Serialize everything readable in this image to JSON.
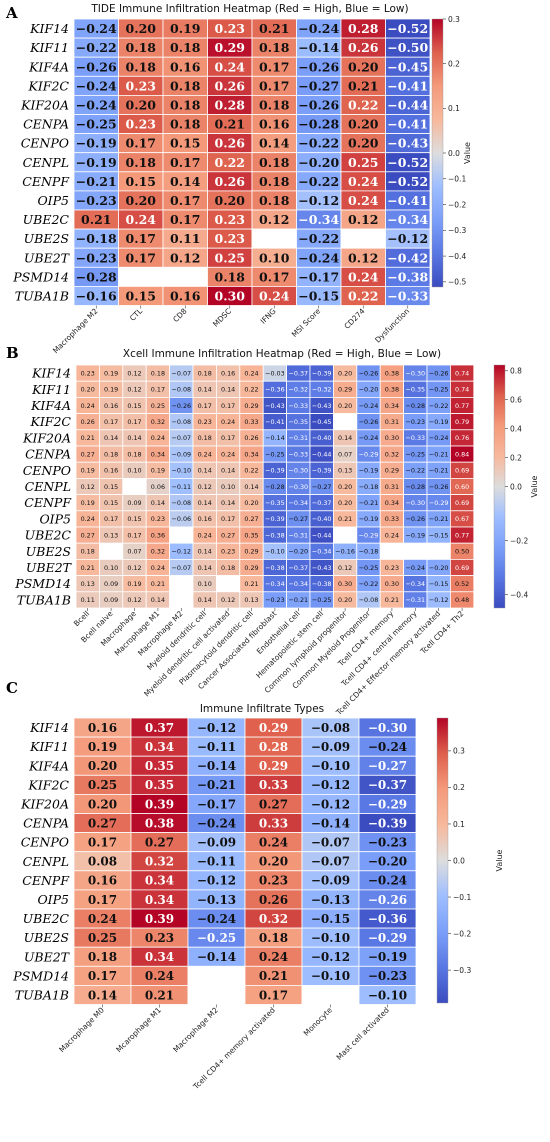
{
  "chart_data": [
    {
      "type": "heatmap",
      "panel_label": "A",
      "title": "TIDE Immune Infiltration Heatmap (Red = High, Blue = Low)",
      "rows": [
        "KIF14",
        "KIF11",
        "KIF4A",
        "KIF2C",
        "KIF20A",
        "CENPA",
        "CENPO",
        "CENPL",
        "CENPF",
        "OIP5",
        "UBE2C",
        "UBE2S",
        "UBE2T",
        "PSMD14",
        "TUBA1B"
      ],
      "columns": [
        "Macrophage M2",
        "CTL",
        "CD8",
        "MDSC",
        "IFNG",
        "MSI Score",
        "CD274",
        "Dysfunction"
      ],
      "values": [
        [
          -0.24,
          0.2,
          0.19,
          0.23,
          0.21,
          -0.24,
          0.28,
          -0.52
        ],
        [
          -0.22,
          0.18,
          0.18,
          0.29,
          0.18,
          -0.14,
          0.26,
          -0.5
        ],
        [
          -0.26,
          0.18,
          0.16,
          0.24,
          0.17,
          -0.26,
          0.2,
          -0.45
        ],
        [
          -0.24,
          0.23,
          0.18,
          0.26,
          0.17,
          -0.27,
          0.21,
          -0.41
        ],
        [
          -0.24,
          0.2,
          0.18,
          0.28,
          0.18,
          -0.26,
          0.22,
          -0.44
        ],
        [
          -0.25,
          0.23,
          0.18,
          0.21,
          0.16,
          -0.28,
          0.2,
          -0.41
        ],
        [
          -0.19,
          0.17,
          0.15,
          0.26,
          0.14,
          -0.22,
          0.2,
          -0.43
        ],
        [
          -0.19,
          0.18,
          0.17,
          0.22,
          0.18,
          -0.2,
          0.25,
          -0.52
        ],
        [
          -0.21,
          0.15,
          0.14,
          0.26,
          0.18,
          -0.22,
          0.24,
          -0.52
        ],
        [
          -0.23,
          0.2,
          0.17,
          0.2,
          0.18,
          -0.12,
          0.24,
          -0.41
        ],
        [
          0.21,
          0.24,
          0.17,
          0.23,
          0.12,
          -0.34,
          0.12,
          -0.34
        ],
        [
          -0.18,
          0.17,
          0.11,
          0.23,
          null,
          -0.22,
          null,
          -0.12
        ],
        [
          -0.23,
          0.17,
          0.12,
          0.25,
          0.1,
          -0.24,
          0.12,
          -0.42
        ],
        [
          -0.28,
          null,
          null,
          0.18,
          0.17,
          -0.17,
          0.24,
          -0.38
        ],
        [
          -0.16,
          0.15,
          0.16,
          0.3,
          0.24,
          -0.15,
          0.22,
          -0.33
        ]
      ],
      "vmin": -0.52,
      "vmax": 0.3,
      "colorbar_ticks": [
        0.3,
        0.2,
        0.1,
        0.0,
        -0.1,
        -0.2,
        -0.3,
        -0.4,
        -0.5
      ],
      "colorbar_tick_labels": [
        "0.3",
        "0.2",
        "0.1",
        "0.0",
        "−0.1",
        "−0.2",
        "−0.3",
        "−0.4",
        "−0.5"
      ],
      "colorbar_label": "Value"
    },
    {
      "type": "heatmap",
      "panel_label": "B",
      "title": "Xcell Immune Infiltration Heatmap (Red = High, Blue = Low)",
      "rows": [
        "KIF14",
        "KIF11",
        "KIF4A",
        "KIF2C",
        "KIF20A",
        "CENPA",
        "CENPO",
        "CENPL",
        "CENPF",
        "OIP5",
        "UBE2C",
        "UBE2S",
        "UBE2T",
        "PSMD14",
        "TUBA1B"
      ],
      "columns": [
        "Bcell",
        "Bcell naive",
        "Macrophage",
        "Macrophage M1",
        "Macrophage M2",
        "Myeloid dendritic cell",
        "Myeloid dendritic cell activated",
        "Plasmacytoid dendritic cell",
        "Cancer Associated fibroblast",
        "Endothelial cell",
        "Hematopoietic stem cell",
        "Common lymphoid progenitor",
        "Common Myeloid Progenitor",
        "Tcell CD4+ memory",
        "Tcell CD4+ central memory",
        "Tcell CD4+ Effector memory activated",
        "Tcell CD4+ Th2"
      ],
      "values": [
        [
          0.23,
          0.19,
          0.12,
          0.18,
          -0.07,
          0.18,
          0.16,
          0.24,
          -0.03,
          -0.37,
          -0.39,
          0.2,
          -0.26,
          0.38,
          -0.3,
          -0.26,
          0.74
        ],
        [
          0.2,
          0.19,
          0.12,
          0.17,
          -0.08,
          0.14,
          0.14,
          0.22,
          -0.36,
          -0.32,
          -0.32,
          0.29,
          -0.2,
          0.38,
          -0.35,
          -0.25,
          0.74
        ],
        [
          0.24,
          0.16,
          0.15,
          0.25,
          -0.26,
          0.17,
          0.17,
          0.29,
          -0.43,
          -0.33,
          -0.43,
          0.2,
          -0.24,
          0.34,
          -0.28,
          -0.22,
          0.77
        ],
        [
          0.26,
          0.17,
          0.17,
          0.32,
          -0.08,
          0.23,
          0.24,
          0.33,
          -0.41,
          -0.35,
          -0.45,
          null,
          -0.26,
          0.31,
          -0.23,
          -0.19,
          0.79
        ],
        [
          0.21,
          0.14,
          0.14,
          0.24,
          -0.07,
          0.18,
          0.17,
          0.26,
          -0.14,
          -0.31,
          -0.4,
          0.14,
          -0.24,
          0.3,
          -0.33,
          -0.24,
          0.76
        ],
        [
          0.27,
          0.18,
          0.18,
          0.34,
          -0.09,
          0.24,
          0.24,
          0.34,
          -0.25,
          -0.33,
          -0.44,
          0.07,
          -0.29,
          0.32,
          -0.25,
          -0.21,
          0.84
        ],
        [
          0.19,
          0.16,
          0.1,
          0.19,
          -0.1,
          0.14,
          0.14,
          0.22,
          -0.39,
          -0.3,
          -0.39,
          0.13,
          -0.19,
          0.29,
          -0.22,
          -0.21,
          0.69
        ],
        [
          0.12,
          0.15,
          null,
          0.06,
          -0.11,
          0.12,
          0.1,
          0.14,
          -0.28,
          -0.3,
          -0.27,
          0.2,
          -0.18,
          0.31,
          -0.28,
          -0.26,
          0.6
        ],
        [
          0.19,
          0.15,
          0.09,
          0.14,
          -0.08,
          0.14,
          0.14,
          0.2,
          -0.35,
          -0.34,
          -0.37,
          0.2,
          -0.21,
          0.34,
          -0.3,
          -0.29,
          0.69
        ],
        [
          0.24,
          0.17,
          0.15,
          0.23,
          -0.06,
          0.16,
          0.17,
          0.27,
          -0.39,
          -0.27,
          -0.4,
          0.21,
          -0.19,
          0.33,
          -0.26,
          -0.21,
          0.67
        ],
        [
          0.27,
          0.13,
          0.17,
          0.36,
          null,
          0.24,
          0.27,
          0.35,
          -0.38,
          -0.31,
          -0.44,
          null,
          -0.29,
          0.24,
          -0.19,
          -0.15,
          0.77
        ],
        [
          0.18,
          null,
          0.07,
          0.32,
          -0.12,
          0.14,
          0.23,
          0.29,
          -0.1,
          -0.2,
          -0.34,
          -0.16,
          -0.18,
          null,
          null,
          null,
          0.5
        ],
        [
          0.21,
          0.1,
          0.12,
          0.24,
          -0.07,
          0.14,
          0.18,
          0.29,
          -0.38,
          -0.37,
          -0.43,
          0.12,
          -0.25,
          0.23,
          -0.24,
          -0.2,
          0.69
        ],
        [
          0.13,
          0.09,
          0.19,
          0.21,
          null,
          0.1,
          null,
          0.21,
          -0.34,
          -0.34,
          -0.38,
          0.3,
          -0.22,
          0.3,
          -0.34,
          -0.15,
          0.52
        ],
        [
          0.11,
          0.09,
          0.12,
          0.14,
          null,
          0.14,
          0.12,
          0.13,
          -0.23,
          -0.21,
          -0.25,
          0.2,
          -0.08,
          0.21,
          -0.31,
          -0.12,
          0.48
        ]
      ],
      "vmin": -0.45,
      "vmax": 0.84,
      "colorbar_ticks": [
        0.8,
        0.6,
        0.4,
        0.2,
        0.0,
        -0.2,
        -0.4
      ],
      "colorbar_tick_labels": [
        "0.8",
        "0.6",
        "0.4",
        "0.2",
        "0.0",
        "−0.2",
        "−0.4"
      ],
      "colorbar_label": "Value"
    },
    {
      "type": "heatmap",
      "panel_label": "C",
      "title": "Immune Infiltrate Types",
      "rows": [
        "KIF14",
        "KIF11",
        "KIF4A",
        "KIF2C",
        "KIF20A",
        "CENPA",
        "CENPO",
        "CENPL",
        "CENPF",
        "OIP5",
        "UBE2C",
        "UBE2S",
        "UBE2T",
        "PSMD14",
        "TUBA1B"
      ],
      "columns": [
        "Macrophage M0",
        "Mcarophage M1",
        "Macrophage M2",
        "Tcell CD4+ memory activated",
        "Monocyte",
        "Mast cell activated"
      ],
      "values": [
        [
          0.16,
          0.37,
          -0.12,
          0.29,
          -0.08,
          -0.3
        ],
        [
          0.19,
          0.34,
          -0.11,
          0.28,
          -0.09,
          -0.24
        ],
        [
          0.2,
          0.35,
          -0.14,
          0.29,
          -0.1,
          -0.27
        ],
        [
          0.25,
          0.35,
          -0.21,
          0.33,
          -0.12,
          -0.37
        ],
        [
          0.2,
          0.39,
          -0.17,
          0.27,
          -0.12,
          -0.29
        ],
        [
          0.27,
          0.38,
          -0.24,
          0.33,
          -0.14,
          -0.39
        ],
        [
          0.17,
          0.27,
          -0.09,
          0.24,
          -0.07,
          -0.23
        ],
        [
          0.08,
          0.32,
          -0.11,
          0.2,
          -0.07,
          -0.2
        ],
        [
          0.16,
          0.34,
          -0.12,
          0.23,
          -0.09,
          -0.24
        ],
        [
          0.17,
          0.34,
          -0.13,
          0.26,
          -0.13,
          -0.26
        ],
        [
          0.24,
          0.39,
          -0.24,
          0.32,
          -0.15,
          -0.36
        ],
        [
          0.25,
          0.23,
          -0.25,
          0.18,
          -0.1,
          -0.29
        ],
        [
          0.18,
          0.34,
          -0.14,
          0.24,
          -0.12,
          -0.19
        ],
        [
          0.17,
          0.24,
          null,
          0.21,
          -0.1,
          -0.23
        ],
        [
          0.14,
          0.21,
          null,
          0.17,
          null,
          -0.1
        ]
      ],
      "vmin": -0.39,
      "vmax": 0.39,
      "colorbar_ticks": [
        0.3,
        0.2,
        0.1,
        0.0,
        -0.1,
        -0.2,
        -0.3
      ],
      "colorbar_tick_labels": [
        "0.3",
        "0.2",
        "0.1",
        "0.0",
        "−0.1",
        "−0.2",
        "−0.3"
      ],
      "colorbar_label": "Value"
    }
  ],
  "colors": {
    "low": "#3b4cc0",
    "mid": "#dddddd",
    "high": "#b40426"
  }
}
